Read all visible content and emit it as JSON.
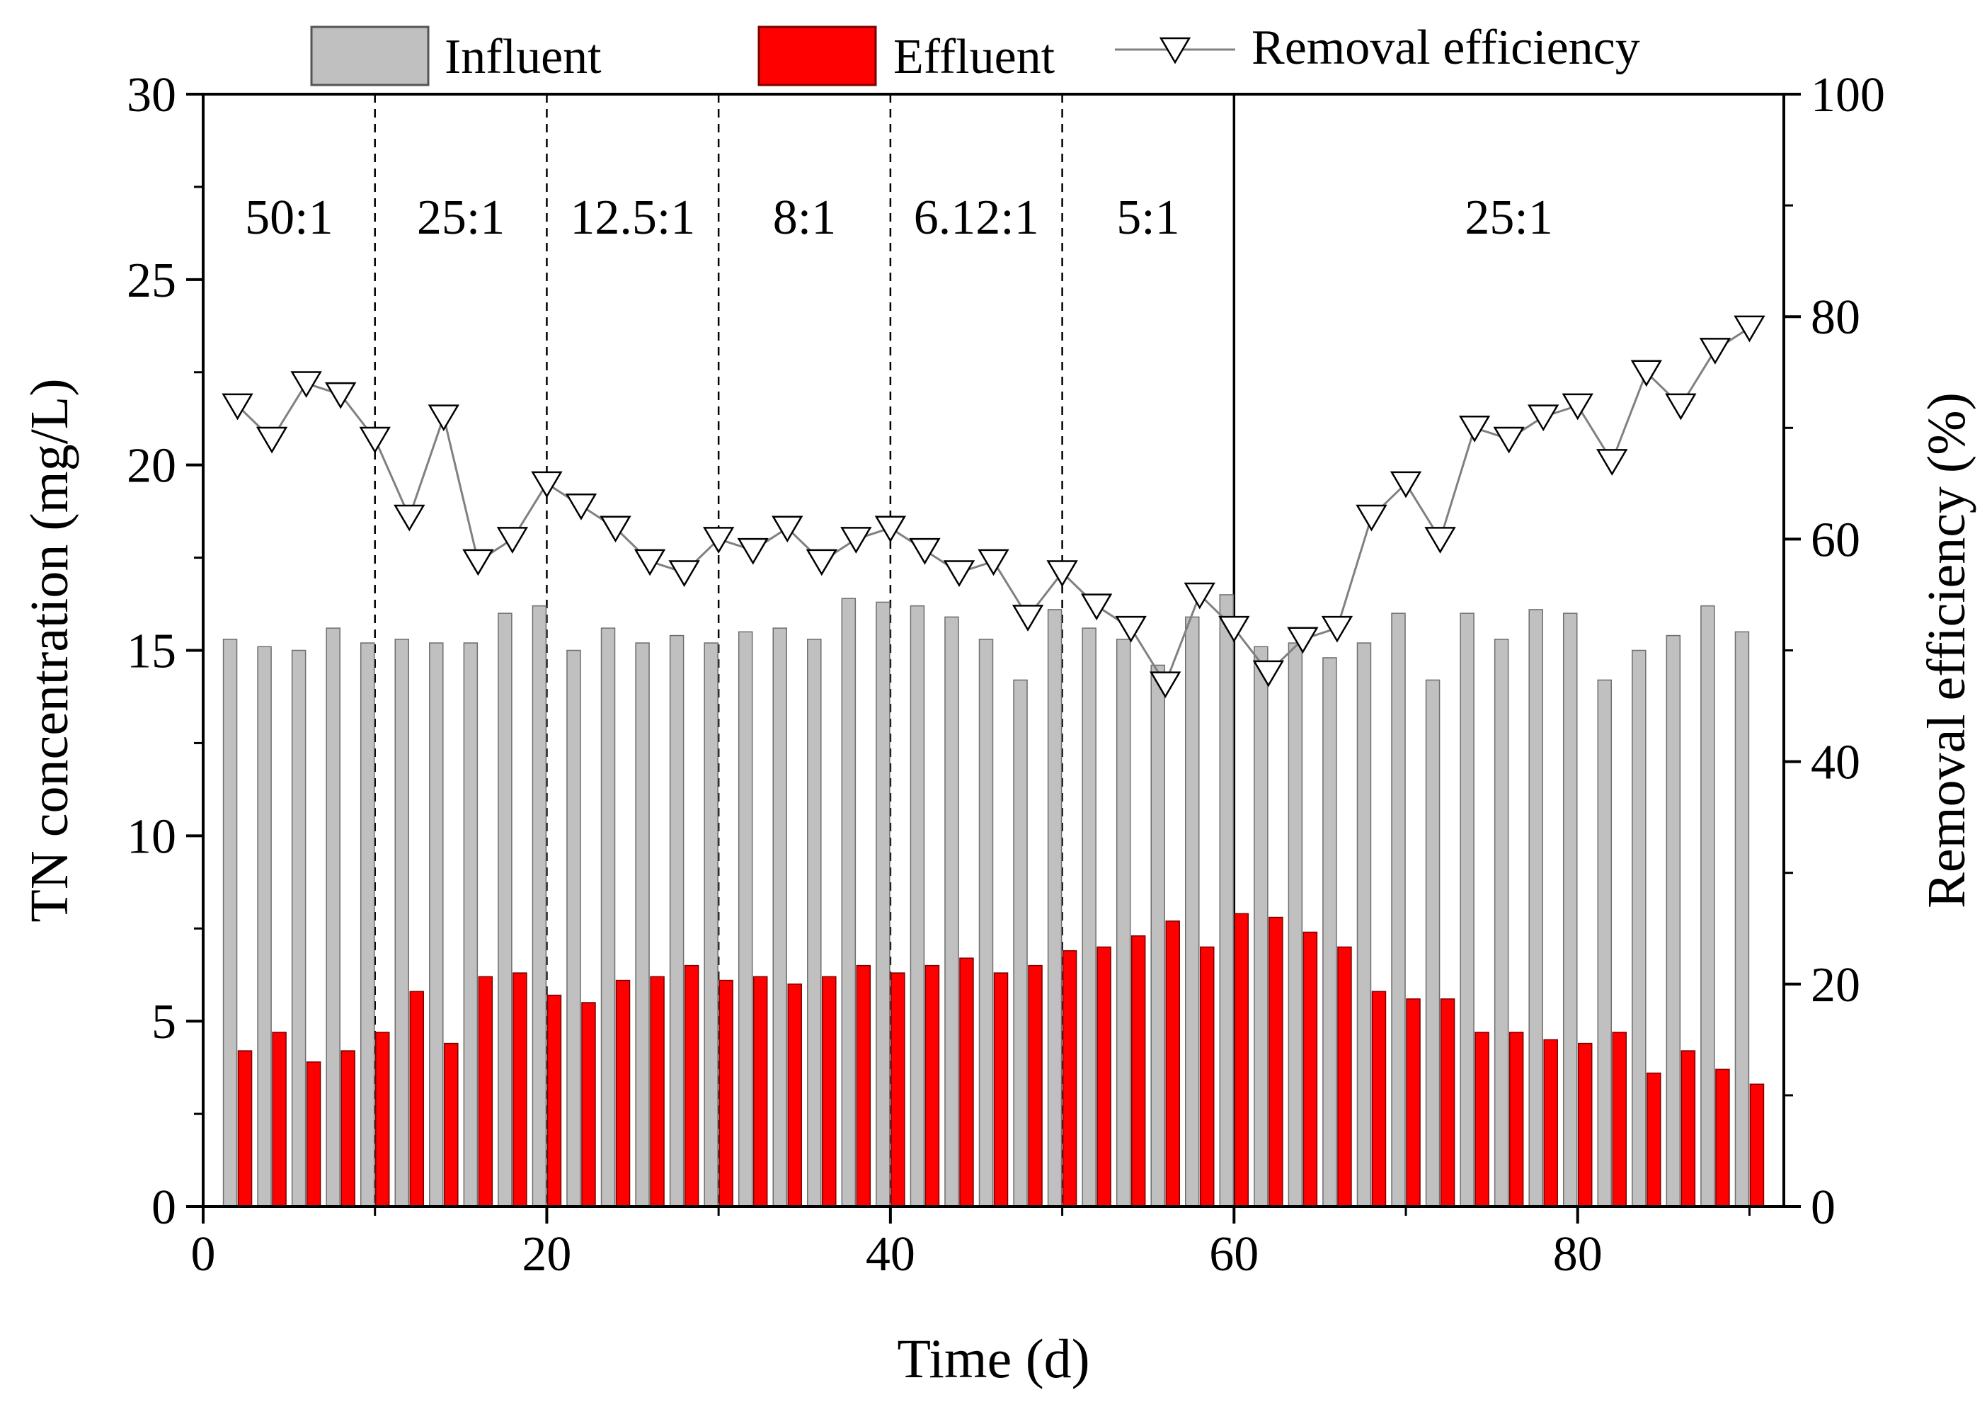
{
  "chart_data": {
    "type": "bar",
    "title": "",
    "xlabel": "Time (d)",
    "ylabel": "TN concentration (mg/L)",
    "y2label": "Removal efficiency (%)",
    "xlim": [
      0,
      92
    ],
    "ylim": [
      0,
      30
    ],
    "y2lim": [
      0,
      100
    ],
    "xticks": [
      "0",
      "20",
      "40",
      "60",
      "80"
    ],
    "yticks": [
      "0",
      "5",
      "10",
      "15",
      "20",
      "25",
      "30"
    ],
    "y2ticks": [
      "0",
      "20",
      "40",
      "60",
      "80",
      "100"
    ],
    "x": [
      2,
      4,
      6,
      8,
      10,
      12,
      14,
      16,
      18,
      20,
      22,
      24,
      26,
      28,
      30,
      32,
      34,
      36,
      38,
      40,
      42,
      44,
      46,
      48,
      50,
      52,
      54,
      56,
      58,
      60,
      62,
      64,
      66,
      68,
      70,
      72,
      74,
      76,
      78,
      80,
      82,
      84,
      86,
      88,
      90
    ],
    "series": [
      {
        "name": "Influent",
        "kind": "bar",
        "axis": "left",
        "color": "#c0c0c0",
        "values": [
          15.3,
          15.1,
          15.0,
          15.6,
          15.2,
          15.3,
          15.2,
          15.2,
          16.0,
          16.2,
          15.0,
          15.6,
          15.2,
          15.4,
          15.2,
          15.5,
          15.6,
          15.3,
          16.4,
          16.3,
          16.2,
          15.9,
          15.3,
          14.2,
          16.1,
          15.6,
          15.3,
          14.6,
          15.9,
          16.5,
          15.1,
          15.2,
          14.8,
          15.2,
          16.0,
          14.2,
          16.0,
          15.3,
          16.1,
          16.0,
          14.2,
          15.0,
          15.4,
          16.2,
          15.5
        ]
      },
      {
        "name": "Effluent",
        "kind": "bar",
        "axis": "left",
        "color": "#ff0000",
        "values": [
          4.2,
          4.7,
          3.9,
          4.2,
          4.7,
          5.8,
          4.4,
          6.2,
          6.3,
          5.7,
          5.5,
          6.1,
          6.2,
          6.5,
          6.1,
          6.2,
          6.0,
          6.2,
          6.5,
          6.3,
          6.5,
          6.7,
          6.3,
          6.5,
          6.9,
          7.0,
          7.3,
          7.7,
          7.0,
          7.9,
          7.8,
          7.4,
          7.0,
          5.8,
          5.6,
          5.6,
          4.7,
          4.7,
          4.5,
          4.4,
          4.7,
          3.6,
          4.2,
          3.7,
          3.3
        ]
      },
      {
        "name": "Removal efficiency",
        "kind": "line",
        "axis": "right",
        "marker": "open-triangle-down",
        "color": "#808080",
        "values": [
          72,
          69,
          74,
          73,
          69,
          62,
          71,
          58,
          60,
          65,
          63,
          61,
          58,
          57,
          60,
          59,
          61,
          58,
          60,
          61,
          59,
          57,
          58,
          53,
          57,
          54,
          52,
          47,
          55,
          52,
          48,
          51,
          52,
          62,
          65,
          60,
          70,
          69,
          71,
          72,
          67,
          75,
          72,
          77,
          79
        ]
      }
    ],
    "phases": [
      {
        "label": "50:1",
        "start": 0,
        "end": 10
      },
      {
        "label": "25:1",
        "start": 10,
        "end": 20
      },
      {
        "label": "12.5:1",
        "start": 20,
        "end": 30
      },
      {
        "label": "8:1",
        "start": 30,
        "end": 40
      },
      {
        "label": "6.12:1",
        "start": 40,
        "end": 50
      },
      {
        "label": "5:1",
        "start": 50,
        "end": 60
      },
      {
        "label": "25:1",
        "start": 60,
        "end": 92
      }
    ],
    "phase_boundaries": [
      {
        "x": 10,
        "style": "dashed"
      },
      {
        "x": 20,
        "style": "dashed"
      },
      {
        "x": 30,
        "style": "dashed"
      },
      {
        "x": 40,
        "style": "dashed"
      },
      {
        "x": 50,
        "style": "dashed"
      },
      {
        "x": 60,
        "style": "solid"
      }
    ],
    "legend": {
      "placement": "top",
      "entries": [
        "Influent",
        "Effluent",
        "Removal efficiency"
      ]
    }
  }
}
